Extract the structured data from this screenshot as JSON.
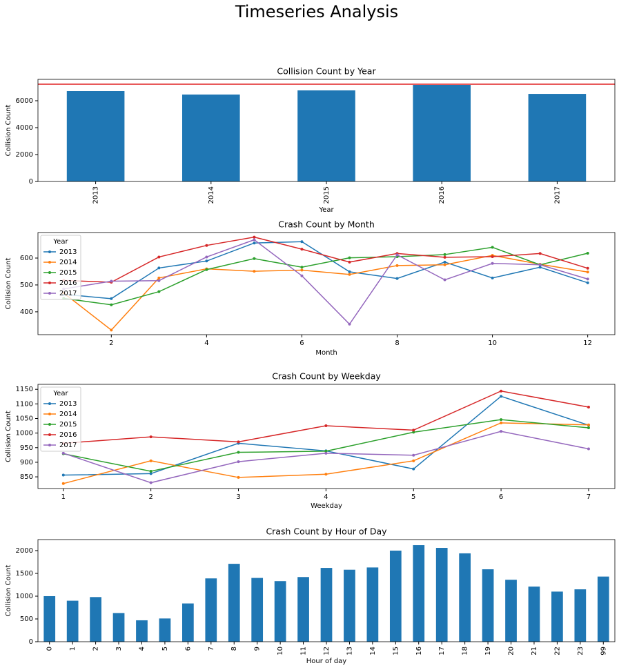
{
  "title": "Timeseries Analysis",
  "chart_data": [
    {
      "type": "bar",
      "title": "Collision Count by Year",
      "x_label": "Year",
      "y_label": "Collision Count",
      "categories": [
        "2013",
        "2014",
        "2015",
        "2016",
        "2017"
      ],
      "values": [
        6718,
        6460,
        6770,
        7230,
        6510
      ],
      "color": "#1f77b4",
      "ylim": [
        0,
        7590
      ],
      "yticks": [
        0,
        2000,
        4000,
        6000
      ],
      "reference_line": {
        "value": 7230,
        "color": "#e8595a"
      }
    },
    {
      "type": "line",
      "title": "Crash Count by Month",
      "x_label": "Month",
      "y_label": "Collision Count",
      "x": [
        1,
        2,
        3,
        4,
        5,
        6,
        7,
        8,
        9,
        10,
        11,
        12
      ],
      "xlim": [
        0.46,
        12.57
      ],
      "xticks": [
        2,
        4,
        6,
        8,
        10,
        12
      ],
      "ylim": [
        315,
        695
      ],
      "yticks": [
        400,
        500,
        600
      ],
      "legend": {
        "title": "Year",
        "loc": "upper left"
      },
      "series": [
        {
          "name": "2013",
          "color": "#1f77b4",
          "values": [
            465,
            449,
            563,
            589,
            656,
            661,
            549,
            524,
            585,
            526,
            566,
            508
          ]
        },
        {
          "name": "2014",
          "color": "#ff7f0e",
          "values": [
            470,
            332,
            526,
            560,
            551,
            555,
            539,
            572,
            575,
            610,
            577,
            548
          ]
        },
        {
          "name": "2015",
          "color": "#2ca02c",
          "values": [
            450,
            426,
            475,
            557,
            598,
            566,
            601,
            605,
            613,
            640,
            575,
            618
          ]
        },
        {
          "name": "2016",
          "color": "#d62728",
          "values": [
            517,
            510,
            604,
            647,
            678,
            633,
            585,
            617,
            603,
            605,
            617,
            562
          ]
        },
        {
          "name": "2017",
          "color": "#9467bd",
          "values": [
            485,
            514,
            516,
            604,
            668,
            534,
            354,
            612,
            519,
            580,
            575,
            522
          ]
        }
      ]
    },
    {
      "type": "line",
      "title": "Crash Count by Weekday",
      "x_label": "Weekday",
      "y_label": "Collision Count",
      "x": [
        1,
        2,
        3,
        4,
        5,
        6,
        7
      ],
      "xlim": [
        0.71,
        7.3
      ],
      "xticks": [
        1,
        2,
        3,
        4,
        5,
        6,
        7
      ],
      "ylim": [
        810,
        1167
      ],
      "yticks": [
        850,
        900,
        950,
        1000,
        1050,
        1100,
        1150
      ],
      "legend": {
        "title": "Year",
        "loc": "upper left"
      },
      "series": [
        {
          "name": "2013",
          "color": "#1f77b4",
          "values": [
            856,
            861,
            965,
            939,
            877,
            1126,
            1027
          ]
        },
        {
          "name": "2014",
          "color": "#ff7f0e",
          "values": [
            827,
            905,
            848,
            859,
            905,
            1035,
            1028
          ]
        },
        {
          "name": "2015",
          "color": "#2ca02c",
          "values": [
            929,
            869,
            934,
            938,
            1003,
            1046,
            1018
          ]
        },
        {
          "name": "2016",
          "color": "#d62728",
          "values": [
            965,
            987,
            970,
            1025,
            1010,
            1144,
            1089
          ]
        },
        {
          "name": "2017",
          "color": "#9467bd",
          "values": [
            931,
            830,
            902,
            931,
            924,
            1006,
            946
          ]
        }
      ]
    },
    {
      "type": "bar",
      "title": "Crash Count by Hour of Day",
      "x_label": "Hour of day",
      "y_label": "Collision Count",
      "categories": [
        "0",
        "1",
        "2",
        "3",
        "4",
        "5",
        "6",
        "7",
        "8",
        "9",
        "10",
        "11",
        "12",
        "13",
        "14",
        "15",
        "16",
        "17",
        "18",
        "19",
        "20",
        "21",
        "22",
        "23",
        "99"
      ],
      "values": [
        1000,
        900,
        980,
        630,
        470,
        510,
        840,
        1390,
        1710,
        1400,
        1330,
        1420,
        1620,
        1580,
        1630,
        2000,
        2120,
        2060,
        1940,
        1590,
        1360,
        1210,
        1100,
        1150,
        1430
      ],
      "color": "#1f77b4",
      "ylim": [
        0,
        2242
      ],
      "yticks": [
        0,
        500,
        1000,
        1500,
        2000
      ]
    }
  ]
}
